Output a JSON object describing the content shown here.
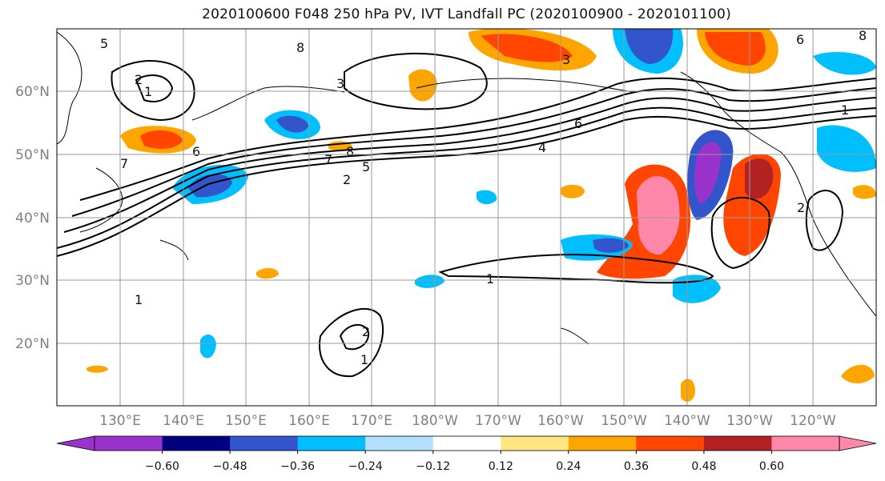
{
  "title": "2020100600 F048 250 hPa PV, IVT Landfall PC (2020100900 - 2020101100)",
  "map": {
    "lat_labels": [
      "60°N",
      "50°N",
      "40°N",
      "30°N",
      "20°N"
    ],
    "lon_labels": [
      "130°E",
      "140°E",
      "150°E",
      "160°E",
      "170°E",
      "180°W",
      "170°W",
      "160°W",
      "150°W",
      "140°W",
      "130°W",
      "120°W"
    ],
    "contour_labels": [
      "5",
      "6",
      "8",
      "1",
      "2",
      "3",
      "7",
      "8",
      "6",
      "4",
      "7",
      "5",
      "2",
      "1",
      "6",
      "3",
      "8",
      "1",
      "2",
      "1",
      "2",
      "1"
    ]
  },
  "colorbar": {
    "ticks": [
      "−0.60",
      "−0.48",
      "−0.36",
      "−0.24",
      "−0.12",
      "0.12",
      "0.24",
      "0.36",
      "0.48",
      "0.60"
    ],
    "colors": [
      "#9933cc",
      "#000080",
      "#3355cc",
      "#00bfff",
      "#b3e0ff",
      "#ffffff",
      "#ffe680",
      "#ffa500",
      "#ff4500",
      "#b22222",
      "#ff88aa"
    ]
  }
}
